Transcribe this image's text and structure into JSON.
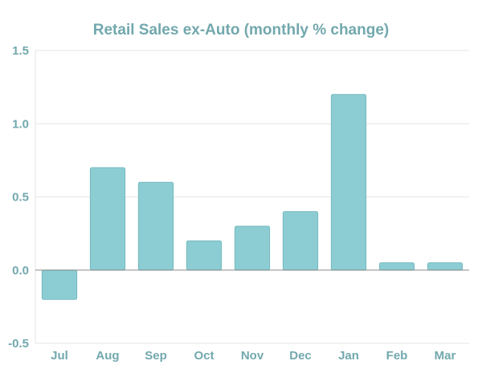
{
  "colors": {
    "bar_fill": "#8ccdd3",
    "bar_stroke": "#76b9bf",
    "text": "#72a8ad",
    "grid": "#e6e6e6",
    "axis": "#8a8a8a"
  },
  "chart_data": {
    "type": "bar",
    "title": "Retail Sales ex-Auto (monthly % change)",
    "xlabel": "",
    "ylabel": "",
    "categories": [
      "Jul",
      "Aug",
      "Sep",
      "Oct",
      "Nov",
      "Dec",
      "Jan",
      "Feb",
      "Mar"
    ],
    "values": [
      -0.2,
      0.7,
      0.6,
      0.2,
      0.3,
      0.4,
      1.2,
      0.05,
      0.05
    ],
    "ylim": [
      -0.5,
      1.5
    ],
    "yticks": [
      1.5,
      1.0,
      0.5,
      0.0,
      -0.5
    ],
    "ytick_labels": [
      "1.5",
      "1.0",
      "0.5",
      "0.0",
      "-0.5"
    ],
    "grid": true,
    "legend": "none"
  }
}
